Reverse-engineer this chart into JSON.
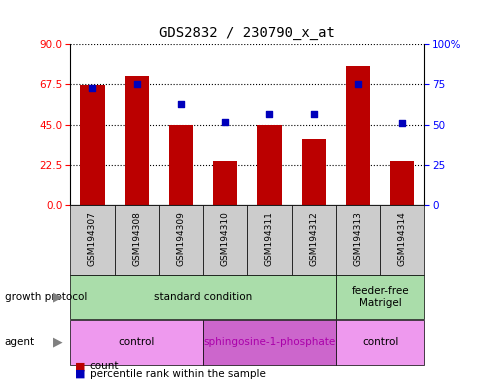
{
  "title": "GDS2832 / 230790_x_at",
  "samples": [
    "GSM194307",
    "GSM194308",
    "GSM194309",
    "GSM194310",
    "GSM194311",
    "GSM194312",
    "GSM194313",
    "GSM194314"
  ],
  "counts": [
    67,
    72,
    45,
    25,
    45,
    37,
    78,
    25
  ],
  "percentiles": [
    73,
    75,
    63,
    52,
    57,
    57,
    75,
    51
  ],
  "ylim_left": [
    0,
    90
  ],
  "ylim_right": [
    0,
    100
  ],
  "yticks_left": [
    0,
    22.5,
    45,
    67.5,
    90
  ],
  "yticks_right": [
    0,
    25,
    50,
    75,
    100
  ],
  "bar_color": "#bb0000",
  "dot_color": "#0000bb",
  "growth_protocol_label": "growth protocol",
  "agent_label": "agent",
  "growth_conditions": [
    {
      "label": "standard condition",
      "start": 0,
      "end": 6,
      "color": "#aaddaa"
    },
    {
      "label": "feeder-free\nMatrigel",
      "start": 6,
      "end": 8,
      "color": "#aaddaa"
    }
  ],
  "agent_conditions": [
    {
      "label": "control",
      "start": 0,
      "end": 3,
      "color": "#ee99ee"
    },
    {
      "label": "sphingosine-1-phosphate",
      "start": 3,
      "end": 6,
      "color": "#cc66cc"
    },
    {
      "label": "control",
      "start": 6,
      "end": 8,
      "color": "#ee99ee"
    }
  ],
  "legend_count_label": "count",
  "legend_percentile_label": "percentile rank within the sample",
  "figsize": [
    4.85,
    3.84
  ],
  "dpi": 100
}
